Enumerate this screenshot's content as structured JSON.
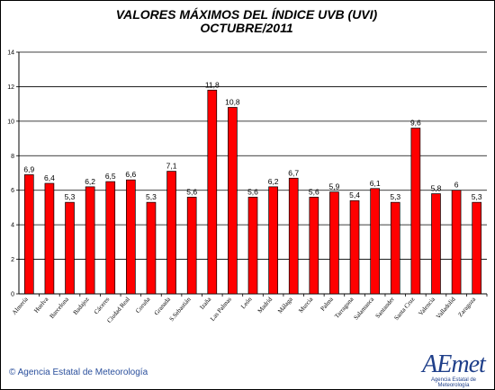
{
  "chart_data": {
    "type": "bar",
    "title": "VALORES MÁXIMOS DEL ÍNDICE UVB (UVI)",
    "subtitle": "OCTUBRE/2011",
    "categories": [
      "Almería",
      "Huelva",
      "Barcelona",
      "Badajoz",
      "Cáceres",
      "Ciudad Real",
      "Coruña",
      "Granada",
      "S.Sebastián",
      "Izaña",
      "Las Palmas",
      "León",
      "Madrid",
      "Málaga",
      "Murcia",
      "Palma",
      "Tarragona",
      "Salamanca",
      "Santander",
      "Santa Cruz",
      "Valencia",
      "Valladolid",
      "Zaragoza"
    ],
    "values": [
      6.9,
      6.4,
      5.3,
      6.2,
      6.5,
      6.6,
      5.3,
      7.1,
      5.6,
      11.8,
      10.8,
      5.6,
      6.2,
      6.7,
      5.6,
      5.9,
      5.4,
      6.1,
      5.3,
      9.6,
      5.8,
      6,
      5.3
    ],
    "value_labels": [
      "6,9",
      "6,4",
      "5,3",
      "6,2",
      "6,5",
      "6,6",
      "5,3",
      "7,1",
      "5,6",
      "11,8",
      "10,8",
      "5,6",
      "6,2",
      "6,7",
      "5,6",
      "5,9",
      "5,4",
      "6,1",
      "5,3",
      "9,6",
      "5,8",
      "6",
      "5,3"
    ],
    "y_ticks": [
      "0",
      "2",
      "4",
      "6",
      "8",
      "10",
      "12",
      "14"
    ],
    "ylim": [
      0,
      14
    ],
    "grid": true,
    "legend": "none",
    "xlabel": "",
    "ylabel": "",
    "colors": {
      "bar": "#ff0000",
      "bar_edge": "#000000",
      "grid": "#000000",
      "title": "#000000"
    }
  },
  "footer": {
    "copyright": "© Agencia Estatal de Meteorología",
    "logo_text": "AEmet",
    "logo_subtext": "Agencia Estatal de Meteorología",
    "brand_color": "#1f3f8a"
  }
}
